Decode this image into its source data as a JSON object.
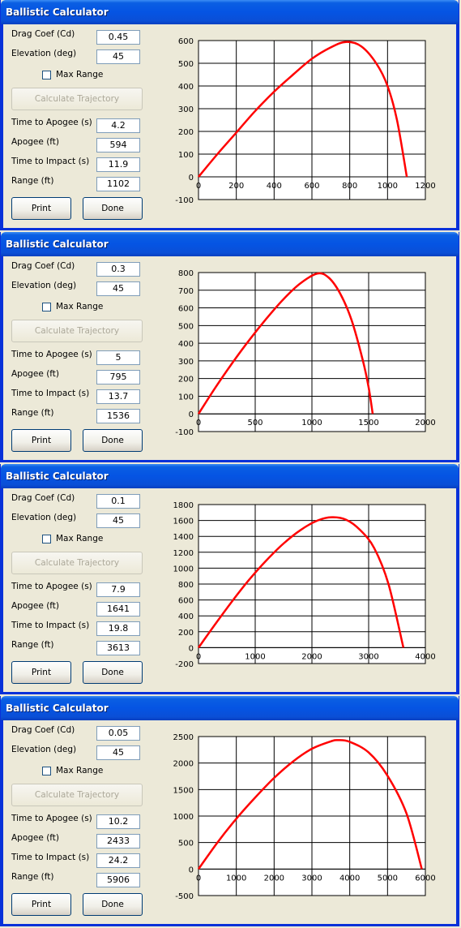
{
  "windows": [
    {
      "title": "Ballistic Calculator",
      "labels": {
        "drag": "Drag Coef (Cd)",
        "elev": "Elevation (deg)",
        "max_range": "Max Range",
        "calc": "Calculate Trajectory",
        "tta": "Time to Apogee (s)",
        "apogee": "Apogee (ft)",
        "tti": "Time to Impact (s)",
        "range": "Range (ft)",
        "print": "Print",
        "done": "Done"
      },
      "values": {
        "drag": "0.45",
        "elev": "45",
        "tta": "4.2",
        "apogee": "594",
        "tti": "11.9",
        "range": "1102"
      },
      "chart_data": {
        "type": "line",
        "xlim": [
          0,
          1200
        ],
        "ylim": [
          -100,
          600
        ],
        "xticks": [
          0,
          200,
          400,
          600,
          800,
          1000,
          1200
        ],
        "yticks": [
          -100,
          0,
          100,
          200,
          300,
          400,
          500,
          600
        ],
        "grid": true,
        "series_color": "#ff0000",
        "x": [
          0,
          100,
          200,
          300,
          400,
          500,
          600,
          700,
          780,
          860,
          940,
          1000,
          1050,
          1102
        ],
        "y": [
          0,
          100,
          195,
          290,
          375,
          450,
          520,
          570,
          594,
          575,
          500,
          400,
          250,
          0
        ]
      }
    },
    {
      "title": "Ballistic Calculator",
      "labels": {
        "drag": "Drag Coef (Cd)",
        "elev": "Elevation (deg)",
        "max_range": "Max Range",
        "calc": "Calculate Trajectory",
        "tta": "Time to Apogee (s)",
        "apogee": "Apogee (ft)",
        "tti": "Time to Impact (s)",
        "range": "Range (ft)",
        "print": "Print",
        "done": "Done"
      },
      "values": {
        "drag": "0.3",
        "elev": "45",
        "tta": "5",
        "apogee": "795",
        "tti": "13.7",
        "range": "1536"
      },
      "chart_data": {
        "type": "line",
        "xlim": [
          0,
          2000
        ],
        "ylim": [
          -100,
          800
        ],
        "xticks": [
          0,
          500,
          1000,
          1500,
          2000
        ],
        "yticks": [
          -100,
          0,
          100,
          200,
          300,
          400,
          500,
          600,
          700,
          800
        ],
        "grid": true,
        "series_color": "#ff0000",
        "x": [
          0,
          150,
          300,
          450,
          600,
          750,
          900,
          1050,
          1150,
          1250,
          1350,
          1450,
          1500,
          1536
        ],
        "y": [
          0,
          150,
          290,
          420,
          540,
          650,
          740,
          795,
          770,
          680,
          530,
          300,
          150,
          0
        ]
      }
    },
    {
      "title": "Ballistic Calculator",
      "labels": {
        "drag": "Drag Coef (Cd)",
        "elev": "Elevation (deg)",
        "max_range": "Max Range",
        "calc": "Calculate Trajectory",
        "tta": "Time to Apogee (s)",
        "apogee": "Apogee (ft)",
        "tti": "Time to Impact (s)",
        "range": "Range (ft)",
        "print": "Print",
        "done": "Done"
      },
      "values": {
        "drag": "0.1",
        "elev": "45",
        "tta": "7.9",
        "apogee": "1641",
        "tti": "19.8",
        "range": "3613"
      },
      "chart_data": {
        "type": "line",
        "xlim": [
          0,
          4000
        ],
        "ylim": [
          -200,
          1800
        ],
        "xticks": [
          0,
          1000,
          2000,
          3000,
          4000
        ],
        "yticks": [
          -200,
          0,
          200,
          400,
          600,
          800,
          1000,
          1200,
          1400,
          1600,
          1800
        ],
        "grid": true,
        "series_color": "#ff0000",
        "x": [
          0,
          300,
          600,
          900,
          1200,
          1500,
          1800,
          2100,
          2350,
          2600,
          2850,
          3100,
          3350,
          3613
        ],
        "y": [
          0,
          300,
          590,
          860,
          1100,
          1310,
          1480,
          1600,
          1641,
          1610,
          1480,
          1250,
          800,
          0
        ]
      }
    },
    {
      "title": "Ballistic Calculator",
      "labels": {
        "drag": "Drag Coef (Cd)",
        "elev": "Elevation (deg)",
        "max_range": "Max Range",
        "calc": "Calculate Trajectory",
        "tta": "Time to Apogee (s)",
        "apogee": "Apogee (ft)",
        "tti": "Time to Impact (s)",
        "range": "Range (ft)",
        "print": "Print",
        "done": "Done"
      },
      "values": {
        "drag": "0.05",
        "elev": "45",
        "tta": "10.2",
        "apogee": "2433",
        "tti": "24.2",
        "range": "5906"
      },
      "chart_data": {
        "type": "line",
        "xlim": [
          0,
          6000
        ],
        "ylim": [
          -500,
          2500
        ],
        "xticks": [
          0,
          1000,
          2000,
          3000,
          4000,
          5000,
          6000
        ],
        "yticks": [
          -500,
          0,
          500,
          1000,
          1500,
          2000,
          2500
        ],
        "grid": true,
        "series_color": "#ff0000",
        "x": [
          0,
          500,
          1000,
          1500,
          2000,
          2500,
          3000,
          3500,
          3700,
          4000,
          4500,
          5000,
          5500,
          5906
        ],
        "y": [
          0,
          500,
          950,
          1350,
          1720,
          2030,
          2270,
          2410,
          2433,
          2400,
          2200,
          1760,
          1050,
          0
        ]
      }
    }
  ]
}
